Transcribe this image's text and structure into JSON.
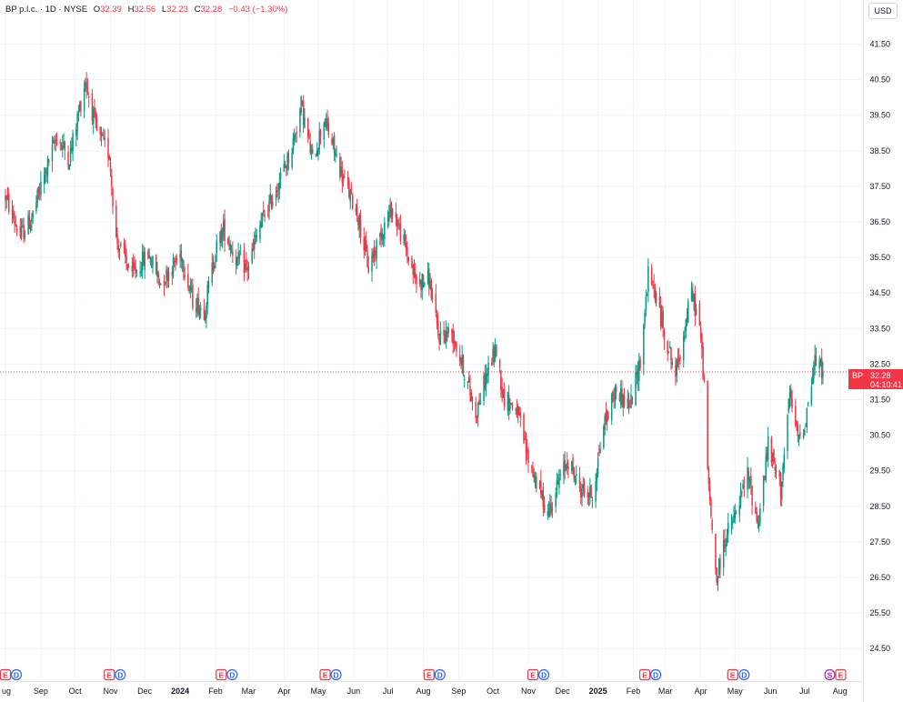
{
  "legend": {
    "title": "BP p.l.c. · 1D · NYSE",
    "o_label": "O",
    "o_value": "32.39",
    "h_label": "H",
    "h_value": "32.56",
    "l_label": "L",
    "l_value": "32.23",
    "c_label": "C",
    "c_value": "32.28",
    "change": "−0.43 (−1.30%)"
  },
  "currency": "USD",
  "price_tag": {
    "symbol": "BP",
    "price": "32.28",
    "countdown": "04:10:41"
  },
  "colors": {
    "up": "#089981",
    "down": "#f23645",
    "grid": "#f0f3fa",
    "text": "#131722",
    "earnings": "#f23645",
    "dividend": "#2962ff",
    "split": "#9c27b0"
  },
  "chart_data": {
    "type": "candlestick",
    "symbol": "BP",
    "interval": "1D",
    "exchange": "NYSE",
    "last_price": 32.28,
    "ylim": [
      24.0,
      42.0
    ],
    "y_ticks": [
      "41.50",
      "40.50",
      "39.50",
      "38.50",
      "37.50",
      "36.50",
      "35.50",
      "34.50",
      "33.50",
      "32.50",
      "31.50",
      "30.50",
      "29.50",
      "28.50",
      "27.50",
      "26.50",
      "25.50",
      "24.50"
    ],
    "x_ticks": [
      "ug",
      "Sep",
      "Oct",
      "Nov",
      "Dec",
      "2024",
      "Feb",
      "Mar",
      "Apr",
      "May",
      "Jun",
      "Jul",
      "Aug",
      "Sep",
      "Oct",
      "Nov",
      "Dec",
      "2025",
      "Feb",
      "Mar",
      "Apr",
      "May",
      "Jun",
      "Jul",
      "Aug"
    ],
    "trend_points": [
      [
        "2023-08-01",
        37.2
      ],
      [
        "2023-08-14",
        36.1
      ],
      [
        "2023-08-24",
        36.6
      ],
      [
        "2023-09-04",
        37.8
      ],
      [
        "2023-09-15",
        38.9
      ],
      [
        "2023-09-26",
        38.3
      ],
      [
        "2023-10-10",
        40.5
      ],
      [
        "2023-10-20",
        39.0
      ],
      [
        "2023-10-31",
        38.4
      ],
      [
        "2023-11-06",
        36.0
      ],
      [
        "2023-11-20",
        35.0
      ],
      [
        "2023-12-04",
        35.6
      ],
      [
        "2023-12-15",
        34.8
      ],
      [
        "2024-01-02",
        35.6
      ],
      [
        "2024-01-12",
        34.3
      ],
      [
        "2024-01-22",
        34.0
      ],
      [
        "2024-02-01",
        35.7
      ],
      [
        "2024-02-08",
        36.3
      ],
      [
        "2024-02-20",
        35.4
      ],
      [
        "2024-02-29",
        35.2
      ],
      [
        "2024-03-11",
        36.4
      ],
      [
        "2024-03-25",
        37.4
      ],
      [
        "2024-04-08",
        38.6
      ],
      [
        "2024-04-16",
        39.8
      ],
      [
        "2024-04-26",
        38.2
      ],
      [
        "2024-05-06",
        39.4
      ],
      [
        "2024-05-14",
        38.6
      ],
      [
        "2024-05-24",
        37.6
      ],
      [
        "2024-06-04",
        36.8
      ],
      [
        "2024-06-14",
        35.2
      ],
      [
        "2024-06-25",
        36.2
      ],
      [
        "2024-07-05",
        36.9
      ],
      [
        "2024-07-16",
        35.8
      ],
      [
        "2024-07-26",
        34.8
      ],
      [
        "2024-08-06",
        34.9
      ],
      [
        "2024-08-14",
        33.3
      ],
      [
        "2024-08-26",
        33.4
      ],
      [
        "2024-09-05",
        32.4
      ],
      [
        "2024-09-16",
        31.1
      ],
      [
        "2024-09-27",
        32.4
      ],
      [
        "2024-10-04",
        32.9
      ],
      [
        "2024-10-10",
        31.6
      ],
      [
        "2024-10-22",
        31.2
      ],
      [
        "2024-10-31",
        29.9
      ],
      [
        "2024-11-08",
        29.2
      ],
      [
        "2024-11-18",
        28.3
      ],
      [
        "2024-11-29",
        29.3
      ],
      [
        "2024-12-06",
        29.8
      ],
      [
        "2024-12-16",
        29.0
      ],
      [
        "2024-12-27",
        28.8
      ],
      [
        "2025-01-06",
        30.8
      ],
      [
        "2025-01-17",
        31.8
      ],
      [
        "2025-01-29",
        31.3
      ],
      [
        "2025-02-07",
        32.6
      ],
      [
        "2025-02-14",
        35.0
      ],
      [
        "2025-02-20",
        34.5
      ],
      [
        "2025-02-28",
        33.4
      ],
      [
        "2025-03-10",
        32.2
      ],
      [
        "2025-03-24",
        34.5
      ],
      [
        "2025-03-31",
        33.6
      ],
      [
        "2025-04-04",
        31.9
      ],
      [
        "2025-04-08",
        28.9
      ],
      [
        "2025-04-15",
        26.4
      ],
      [
        "2025-04-22",
        27.6
      ],
      [
        "2025-05-01",
        28.2
      ],
      [
        "2025-05-12",
        29.4
      ],
      [
        "2025-05-21",
        28.0
      ],
      [
        "2025-05-30",
        30.2
      ],
      [
        "2025-06-10",
        29.0
      ],
      [
        "2025-06-18",
        31.6
      ],
      [
        "2025-06-25",
        30.4
      ],
      [
        "2025-07-01",
        30.8
      ],
      [
        "2025-07-10",
        32.6
      ],
      [
        "2025-07-17",
        32.28
      ]
    ],
    "event_markers": [
      {
        "date": "2023-08-01",
        "labels": [
          "E",
          "D"
        ]
      },
      {
        "date": "2023-10-31",
        "labels": [
          "E",
          "D"
        ]
      },
      {
        "date": "2024-02-06",
        "labels": [
          "E",
          "D"
        ]
      },
      {
        "date": "2024-05-07",
        "labels": [
          "E",
          "D"
        ]
      },
      {
        "date": "2024-08-06",
        "labels": [
          "E",
          "D"
        ]
      },
      {
        "date": "2024-11-05",
        "labels": [
          "E",
          "D"
        ]
      },
      {
        "date": "2025-02-11",
        "labels": [
          "E",
          "D"
        ]
      },
      {
        "date": "2025-04-29",
        "labels": [
          "E"
        ]
      },
      {
        "date": "2025-05-09",
        "labels": [
          "D"
        ]
      },
      {
        "date": "2025-07-23",
        "labels": [
          "S",
          "E"
        ]
      }
    ]
  }
}
